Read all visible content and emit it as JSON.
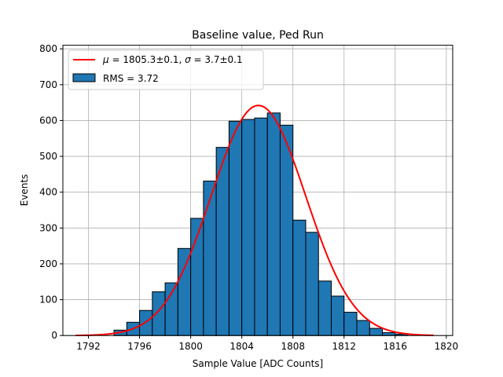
{
  "chart_data": {
    "type": "bar",
    "title": "Baseline value, Ped Run",
    "xlabel": "Sample Value [ADC Counts]",
    "ylabel": "Events",
    "xlim": [
      1790,
      1820.5
    ],
    "ylim": [
      0,
      810
    ],
    "x_ticks": [
      1792,
      1796,
      1800,
      1804,
      1808,
      1812,
      1816,
      1820
    ],
    "y_ticks": [
      0,
      100,
      200,
      300,
      400,
      500,
      600,
      700,
      800
    ],
    "grid": true,
    "legend_position": "top-left",
    "bin_width": 1,
    "bins": [
      {
        "x": 1794.5,
        "count": 15
      },
      {
        "x": 1795.5,
        "count": 37
      },
      {
        "x": 1796.5,
        "count": 70
      },
      {
        "x": 1797.5,
        "count": 122
      },
      {
        "x": 1798.5,
        "count": 147
      },
      {
        "x": 1799.5,
        "count": 243
      },
      {
        "x": 1800.5,
        "count": 327
      },
      {
        "x": 1801.5,
        "count": 431
      },
      {
        "x": 1802.5,
        "count": 525
      },
      {
        "x": 1803.5,
        "count": 598
      },
      {
        "x": 1804.5,
        "count": 603
      },
      {
        "x": 1805.5,
        "count": 607
      },
      {
        "x": 1806.5,
        "count": 621
      },
      {
        "x": 1807.5,
        "count": 587
      },
      {
        "x": 1808.5,
        "count": 322
      },
      {
        "x": 1809.5,
        "count": 288
      },
      {
        "x": 1810.5,
        "count": 152
      },
      {
        "x": 1811.5,
        "count": 110
      },
      {
        "x": 1812.5,
        "count": 65
      },
      {
        "x": 1813.5,
        "count": 42
      },
      {
        "x": 1814.5,
        "count": 20
      },
      {
        "x": 1815.5,
        "count": 8
      },
      {
        "x": 1816.5,
        "count": 4
      }
    ],
    "fit": {
      "mu": 1805.3,
      "sigma": 3.7,
      "amplitude": 642,
      "x_range": [
        1791,
        1819
      ]
    },
    "series": [
      {
        "name": "RMS = 3.72",
        "kind": "histogram",
        "color": "#1f77b4"
      },
      {
        "name_prefix_mu": "μ",
        "name": " = 1805.3±0.1, ",
        "name_sigma": "σ",
        "name_suffix": " = 3.7±0.1",
        "kind": "fit",
        "color": "#ff0000"
      }
    ]
  }
}
